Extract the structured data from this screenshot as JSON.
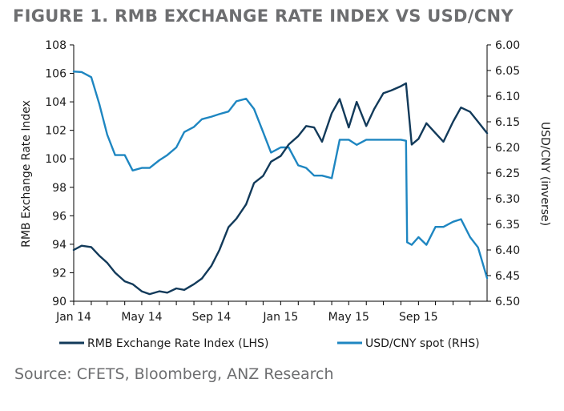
{
  "title": "FIGURE 1. RMB EXCHANGE RATE INDEX VS USD/CNY",
  "source": "Source: CFETS, Bloomberg, ANZ Research",
  "chart_data": {
    "type": "line",
    "ylabel_left": "RMB Exchange Rate Index",
    "ylabel_right": "USD/CNY (inverse)",
    "x_tick_labels": [
      "Jan 14",
      "May 14",
      "Sep 14",
      "Jan 15",
      "May 15",
      "Sep 15"
    ],
    "x_range": [
      "2014-01",
      "2015-12"
    ],
    "y_left_range": [
      90,
      108
    ],
    "y_left_ticks": [
      "90",
      "92",
      "94",
      "96",
      "98",
      "100",
      "102",
      "104",
      "106",
      "108"
    ],
    "y_right_range": [
      6.0,
      6.5
    ],
    "y_right_inverted": true,
    "y_right_ticks": [
      "6.00",
      "6.05",
      "6.10",
      "6.15",
      "6.20",
      "6.25",
      "6.30",
      "6.35",
      "6.40",
      "6.45",
      "6.50"
    ],
    "legend_position": "bottom",
    "grid": false,
    "series": [
      {
        "name": "RMB Exchange Rate Index (LHS)",
        "axis": "left",
        "color": "#123a5a",
        "x": [
          "2014-01-01",
          "2014-01-15",
          "2014-02-01",
          "2014-02-15",
          "2014-03-01",
          "2014-03-15",
          "2014-04-01",
          "2014-04-15",
          "2014-05-01",
          "2014-05-15",
          "2014-06-01",
          "2014-06-15",
          "2014-07-01",
          "2014-07-15",
          "2014-08-01",
          "2014-08-15",
          "2014-09-01",
          "2014-09-15",
          "2014-10-01",
          "2014-10-15",
          "2014-11-01",
          "2014-11-15",
          "2014-12-01",
          "2014-12-15",
          "2015-01-01",
          "2015-01-15",
          "2015-02-01",
          "2015-02-15",
          "2015-03-01",
          "2015-03-15",
          "2015-04-01",
          "2015-04-15",
          "2015-05-01",
          "2015-05-15",
          "2015-06-01",
          "2015-06-15",
          "2015-07-01",
          "2015-07-15",
          "2015-08-01",
          "2015-08-10",
          "2015-08-20",
          "2015-09-01",
          "2015-09-15",
          "2015-10-01",
          "2015-10-15",
          "2015-11-01",
          "2015-11-15",
          "2015-12-01",
          "2015-12-15",
          "2015-12-31"
        ],
        "values": [
          93.6,
          93.9,
          93.8,
          93.2,
          92.7,
          92.0,
          91.4,
          91.2,
          90.7,
          90.5,
          90.7,
          90.6,
          90.9,
          90.8,
          91.2,
          91.6,
          92.5,
          93.6,
          95.2,
          95.8,
          96.8,
          98.3,
          98.8,
          99.8,
          100.2,
          101.0,
          101.6,
          102.3,
          102.2,
          101.2,
          103.2,
          104.2,
          102.2,
          104.0,
          102.3,
          103.5,
          104.6,
          104.8,
          105.1,
          105.3,
          101.0,
          101.4,
          102.5,
          101.8,
          101.2,
          102.6,
          103.6,
          103.3,
          102.6,
          101.8
        ]
      },
      {
        "name": "USD/CNY spot (RHS)",
        "axis": "right",
        "color": "#1e86c1",
        "x": [
          "2014-01-01",
          "2014-01-15",
          "2014-02-01",
          "2014-02-15",
          "2014-03-01",
          "2014-03-15",
          "2014-04-01",
          "2014-04-15",
          "2014-05-01",
          "2014-05-15",
          "2014-06-01",
          "2014-06-15",
          "2014-07-01",
          "2014-07-15",
          "2014-08-01",
          "2014-08-15",
          "2014-09-01",
          "2014-09-15",
          "2014-10-01",
          "2014-10-15",
          "2014-11-01",
          "2014-11-15",
          "2014-12-01",
          "2014-12-15",
          "2015-01-01",
          "2015-01-15",
          "2015-02-01",
          "2015-02-15",
          "2015-03-01",
          "2015-03-15",
          "2015-04-01",
          "2015-04-15",
          "2015-05-01",
          "2015-05-15",
          "2015-06-01",
          "2015-06-15",
          "2015-07-01",
          "2015-07-15",
          "2015-08-01",
          "2015-08-10",
          "2015-08-12",
          "2015-08-20",
          "2015-09-01",
          "2015-09-15",
          "2015-10-01",
          "2015-10-15",
          "2015-11-01",
          "2015-11-15",
          "2015-12-01",
          "2015-12-15",
          "2015-12-31"
        ],
        "values": [
          6.052,
          6.053,
          6.063,
          6.115,
          6.175,
          6.215,
          6.215,
          6.245,
          6.24,
          6.24,
          6.225,
          6.215,
          6.2,
          6.17,
          6.16,
          6.145,
          6.14,
          6.135,
          6.13,
          6.11,
          6.105,
          6.125,
          6.17,
          6.21,
          6.2,
          6.2,
          6.235,
          6.24,
          6.255,
          6.255,
          6.26,
          6.185,
          6.185,
          6.195,
          6.185,
          6.185,
          6.185,
          6.185,
          6.185,
          6.187,
          6.385,
          6.39,
          6.375,
          6.39,
          6.355,
          6.355,
          6.345,
          6.34,
          6.375,
          6.395,
          6.455
        ]
      }
    ]
  }
}
